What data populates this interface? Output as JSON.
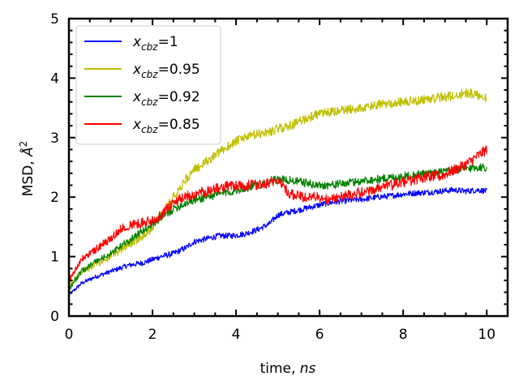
{
  "chart_data": {
    "type": "line",
    "xlabel": {
      "text": "time, ",
      "italic": "ns"
    },
    "ylabel": {
      "text": "MSD, ",
      "symbol": "Å",
      "sup": "2"
    },
    "xlim": [
      0,
      10.5
    ],
    "ylim": [
      0,
      5
    ],
    "xticks": [
      "0",
      "2",
      "4",
      "6",
      "8",
      "10"
    ],
    "yticks": [
      "0",
      "1",
      "2",
      "3",
      "4",
      "5"
    ],
    "legend_position": "upper-left",
    "series": [
      {
        "name": "x_cbz=1",
        "legend": {
          "var": "x",
          "sub": "cbz",
          "value": "=1"
        },
        "color": "#0000ff",
        "noise": 0.05,
        "x": [
          0,
          0.3,
          0.6,
          1.0,
          1.4,
          1.8,
          2.0,
          2.2,
          2.5,
          2.8,
          3.0,
          3.3,
          3.6,
          3.9,
          4.2,
          4.5,
          4.8,
          5.0,
          5.3,
          5.6,
          5.9,
          6.2,
          6.5,
          6.8,
          7.1,
          7.4,
          7.7,
          8.0,
          8.3,
          8.6,
          8.9,
          9.2,
          9.5,
          9.8,
          10.0
        ],
        "y": [
          0.35,
          0.55,
          0.65,
          0.75,
          0.85,
          0.9,
          0.95,
          1.0,
          1.05,
          1.15,
          1.25,
          1.3,
          1.35,
          1.35,
          1.38,
          1.45,
          1.55,
          1.7,
          1.75,
          1.8,
          1.85,
          1.9,
          1.93,
          1.95,
          1.97,
          2.0,
          2.02,
          2.05,
          2.07,
          2.08,
          2.1,
          2.12,
          2.1,
          2.12,
          2.1
        ]
      },
      {
        "name": "x_cbz=0.95",
        "legend": {
          "var": "x",
          "sub": "cbz",
          "value": "=0.95"
        },
        "color": "#bfbf00",
        "noise": 0.08,
        "x": [
          0,
          0.3,
          0.6,
          1.0,
          1.4,
          1.8,
          2.0,
          2.2,
          2.5,
          2.8,
          3.0,
          3.3,
          3.6,
          3.9,
          4.2,
          4.5,
          4.8,
          5.0,
          5.3,
          5.6,
          5.9,
          6.2,
          6.5,
          6.8,
          7.1,
          7.4,
          7.7,
          8.0,
          8.3,
          8.6,
          8.9,
          9.2,
          9.5,
          9.8,
          10.0
        ],
        "y": [
          0.5,
          0.75,
          0.85,
          1.0,
          1.2,
          1.35,
          1.5,
          1.7,
          2.0,
          2.3,
          2.45,
          2.6,
          2.75,
          2.9,
          3.0,
          3.05,
          3.1,
          3.15,
          3.2,
          3.3,
          3.38,
          3.42,
          3.45,
          3.48,
          3.5,
          3.55,
          3.58,
          3.6,
          3.62,
          3.65,
          3.68,
          3.7,
          3.75,
          3.72,
          3.68
        ]
      },
      {
        "name": "x_cbz=0.92",
        "legend": {
          "var": "x",
          "sub": "cbz",
          "value": "=0.92"
        },
        "color": "#008000",
        "noise": 0.07,
        "x": [
          0,
          0.3,
          0.6,
          1.0,
          1.4,
          1.8,
          2.0,
          2.2,
          2.5,
          2.8,
          3.0,
          3.3,
          3.6,
          3.9,
          4.2,
          4.5,
          4.8,
          5.0,
          5.3,
          5.6,
          5.9,
          6.2,
          6.5,
          6.8,
          7.1,
          7.4,
          7.7,
          8.0,
          8.3,
          8.6,
          8.9,
          9.2,
          9.5,
          9.8,
          10.0
        ],
        "y": [
          0.45,
          0.75,
          0.9,
          1.05,
          1.25,
          1.45,
          1.55,
          1.65,
          1.8,
          1.9,
          1.95,
          2.0,
          2.05,
          2.1,
          2.15,
          2.2,
          2.25,
          2.3,
          2.28,
          2.25,
          2.2,
          2.2,
          2.22,
          2.25,
          2.28,
          2.3,
          2.33,
          2.35,
          2.38,
          2.4,
          2.42,
          2.45,
          2.48,
          2.5,
          2.5
        ]
      },
      {
        "name": "x_cbz=0.85",
        "legend": {
          "var": "x",
          "sub": "cbz",
          "value": "=0.85"
        },
        "color": "#ff0000",
        "noise": 0.09,
        "x": [
          0,
          0.3,
          0.6,
          1.0,
          1.3,
          1.6,
          2.0,
          2.2,
          2.5,
          2.8,
          3.0,
          3.3,
          3.6,
          3.9,
          4.2,
          4.5,
          4.8,
          5.0,
          5.3,
          5.6,
          5.9,
          6.2,
          6.5,
          6.8,
          7.1,
          7.4,
          7.7,
          8.0,
          8.3,
          8.6,
          8.9,
          9.2,
          9.5,
          9.8,
          10.0
        ],
        "y": [
          0.6,
          0.95,
          1.1,
          1.3,
          1.5,
          1.55,
          1.6,
          1.7,
          1.9,
          2.0,
          2.05,
          2.1,
          2.15,
          2.2,
          2.2,
          2.2,
          2.25,
          2.3,
          2.05,
          2.0,
          2.0,
          1.95,
          2.0,
          2.05,
          2.1,
          2.15,
          2.2,
          2.25,
          2.3,
          2.35,
          2.35,
          2.45,
          2.55,
          2.7,
          2.8
        ]
      }
    ]
  }
}
